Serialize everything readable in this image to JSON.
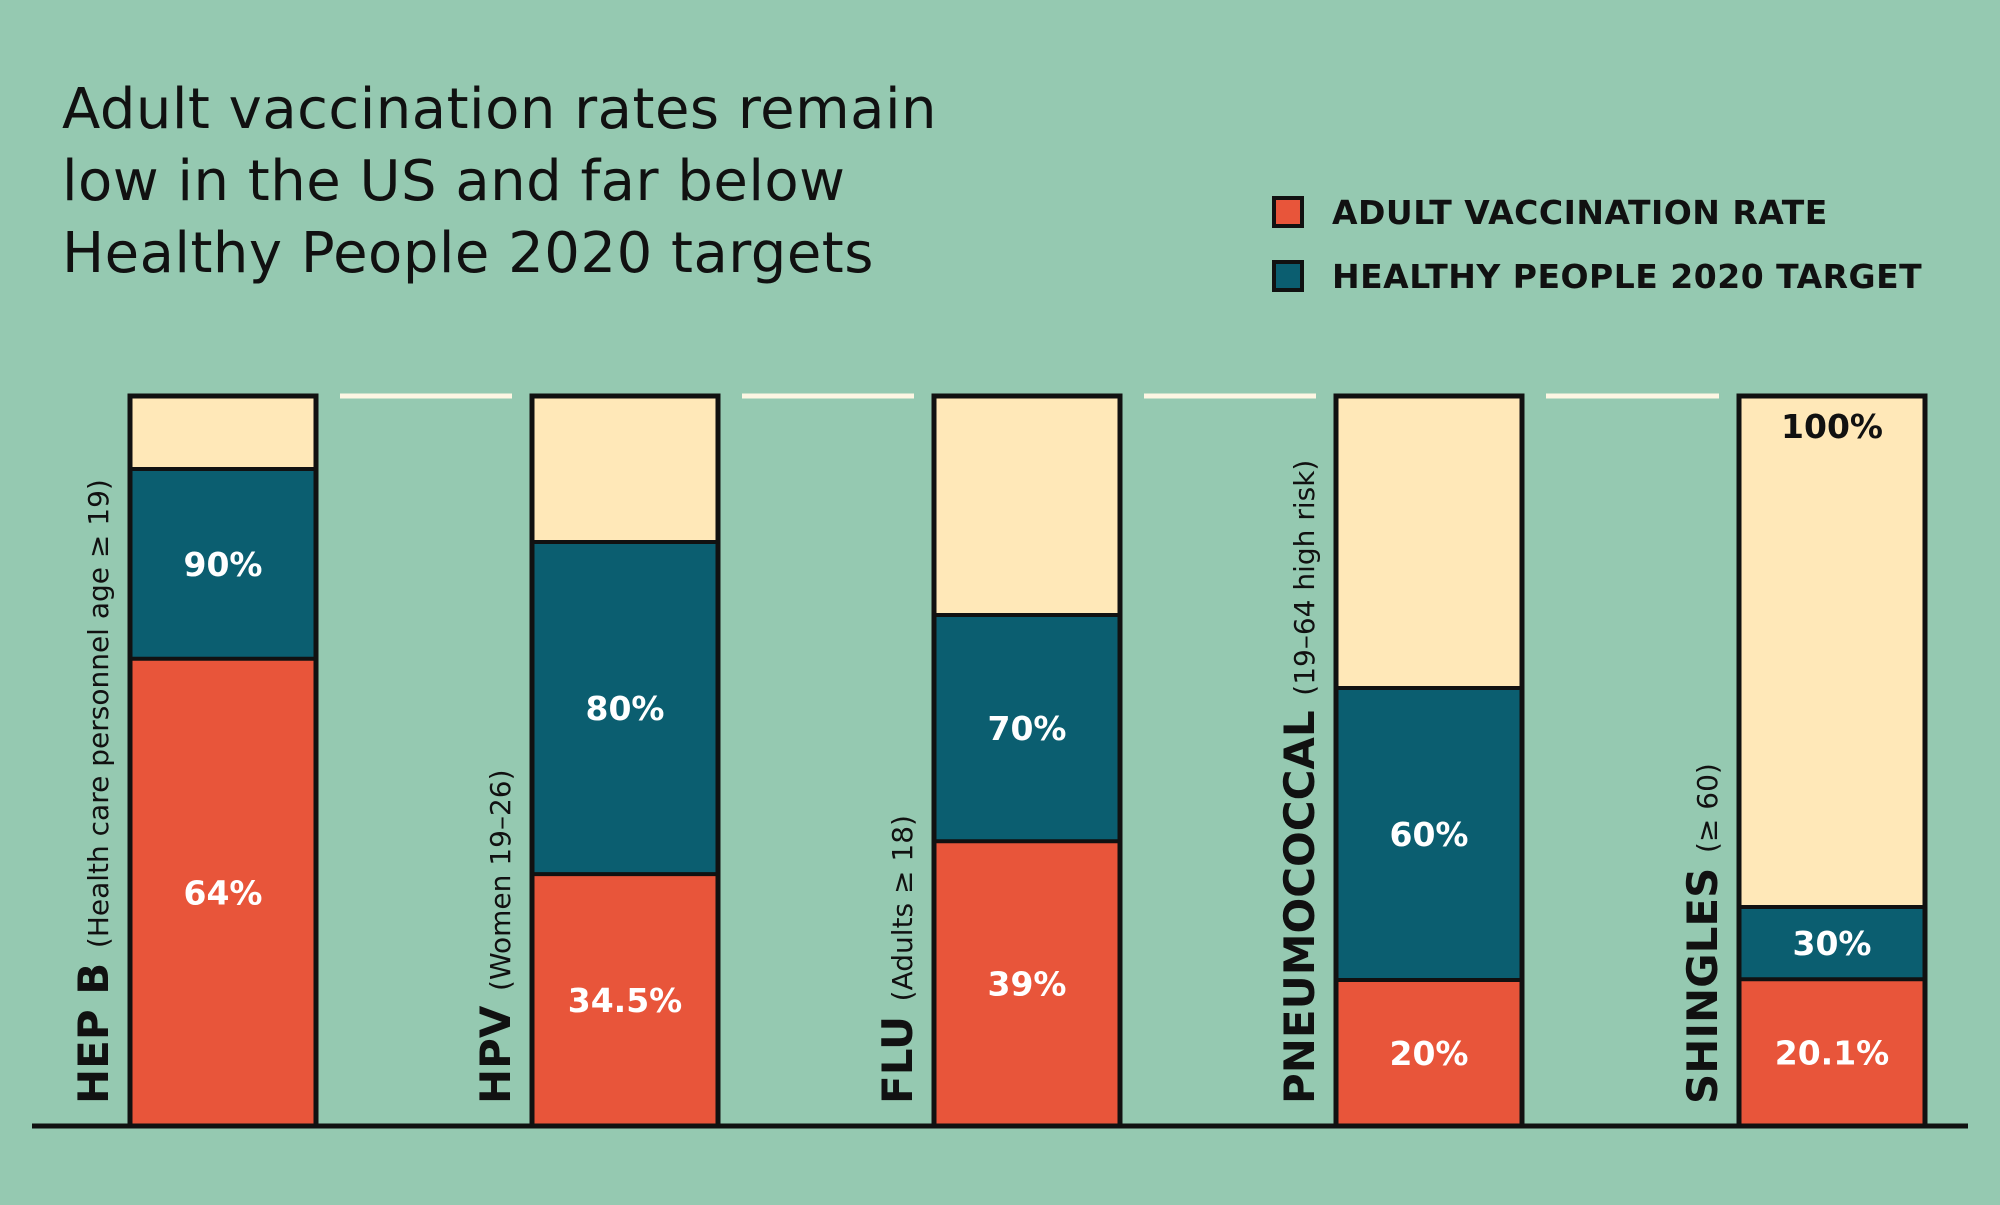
{
  "title_lines": [
    "Adult vaccination rates remain",
    "low in the US and far below",
    "Healthy People 2020 targets"
  ],
  "legend": [
    {
      "label": "ADULT VACCINATION RATE",
      "color": "#e8553a"
    },
    {
      "label": "HEALTHY PEOPLE 2020 TARGET",
      "color": "#0b5e70"
    }
  ],
  "colors": {
    "background": "#95c9b1",
    "rate": "#e8553a",
    "target": "#0b5e70",
    "remainder": "#ffe8b8",
    "outline": "#111111",
    "gridline": "#fdf6e3"
  },
  "chart_data": {
    "type": "bar",
    "stacked_overlay": true,
    "ylim": [
      0,
      100
    ],
    "categories": [
      {
        "name": "HEP B",
        "qualifier": "(Health care personnel age ≥ 19)"
      },
      {
        "name": "HPV",
        "qualifier": "(Women 19–26)"
      },
      {
        "name": "FLU",
        "qualifier": "(Adults ≥ 18)"
      },
      {
        "name": "PNEUMOCOCCAL",
        "qualifier": "(19–64 high risk)"
      },
      {
        "name": "SHINGLES",
        "qualifier": "(≥ 60)"
      }
    ],
    "series": [
      {
        "name": "ADULT VACCINATION RATE",
        "values": [
          64,
          34.5,
          39,
          20,
          20.1
        ],
        "labels": [
          "64%",
          "34.5%",
          "39%",
          "20%",
          "20.1%"
        ]
      },
      {
        "name": "HEALTHY PEOPLE 2020 TARGET",
        "values": [
          90,
          80,
          70,
          60,
          30
        ],
        "labels": [
          "90%",
          "80%",
          "70%",
          "60%",
          "30%"
        ]
      }
    ],
    "top_label": "100%"
  }
}
